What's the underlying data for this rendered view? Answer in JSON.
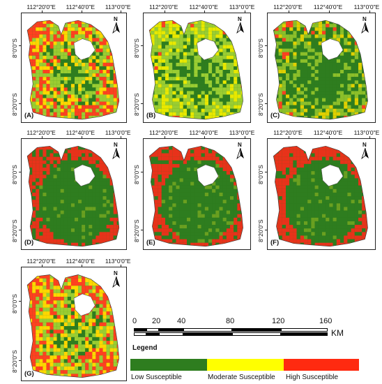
{
  "panels": [
    {
      "label": "(A)",
      "scheme": "mixed-a"
    },
    {
      "label": "(B)",
      "scheme": "green-yellow"
    },
    {
      "label": "(C)",
      "scheme": "green-mix"
    },
    {
      "label": "(D)",
      "scheme": "green-red-edges"
    },
    {
      "label": "(E)",
      "scheme": "green-red-edges"
    },
    {
      "label": "(F)",
      "scheme": "green-red-edges"
    },
    {
      "label": "(G)",
      "scheme": "mixed-g"
    }
  ],
  "x_ticks": [
    "112°20'0\"E",
    "112°40'0\"E",
    "113°0'0\"E"
  ],
  "y_ticks": [
    "8°0'0\"S",
    "8°20'0\"S"
  ],
  "north_label": "N",
  "scale": {
    "ticks": [
      "0",
      "20",
      "40",
      "80",
      "120",
      "160"
    ],
    "unit": "KM"
  },
  "legend": {
    "title": "Legend",
    "items": [
      {
        "label": "Low Susceptible",
        "color": "#2e7d1f"
      },
      {
        "label": "Moderate Susceptible",
        "color": "#ffff00"
      },
      {
        "label": "High Susceptible",
        "color": "#ff2a10"
      }
    ]
  }
}
